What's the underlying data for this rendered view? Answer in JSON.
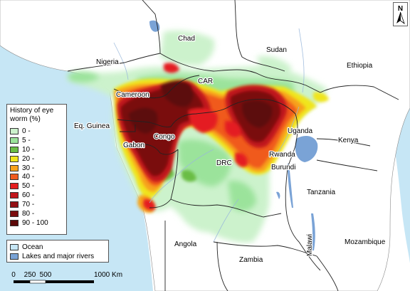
{
  "legend": {
    "title": "History of eye worm (%)",
    "classes": [
      {
        "label": "0 -",
        "color": "#ccf2cc"
      },
      {
        "label": "5 -",
        "color": "#9be39b"
      },
      {
        "label": "10 -",
        "color": "#6abd45"
      },
      {
        "label": "20 -",
        "color": "#f0e51d"
      },
      {
        "label": "30 -",
        "color": "#f7a21b"
      },
      {
        "label": "40 -",
        "color": "#f05a1e"
      },
      {
        "label": "50 -",
        "color": "#e41e20"
      },
      {
        "label": "60 -",
        "color": "#c1161b"
      },
      {
        "label": "70 -",
        "color": "#941014"
      },
      {
        "label": "80 -",
        "color": "#7a0c0e"
      },
      {
        "label": "90 - 100",
        "color": "#5c0808"
      }
    ]
  },
  "water_legend": {
    "ocean_label": "Ocean",
    "ocean_color": "#c6e6f5",
    "lakes_label": "Lakes and major rivers",
    "lakes_color": "#7aa3d6"
  },
  "scale": {
    "t0": "0",
    "t1": "250",
    "t2": "500",
    "t3": "1000 Km"
  },
  "north_label": "N",
  "countries": {
    "chad": "Chad",
    "sudan": "Sudan",
    "nigeria": "Nigeria",
    "ethiopia": "Ethiopia",
    "car": "CAR",
    "cameroon": "Cameroon",
    "eq_guinea": "Eq. Guinea",
    "congo": "Congo",
    "gabon": "Gabon",
    "uganda": "Uganda",
    "kenya": "Kenya",
    "drc": "DRC",
    "rwanda": "Rwanda",
    "burundi": "Burundi",
    "tanzania": "Tanzania",
    "angola": "Angola",
    "zambia": "Zambia",
    "malawi": "Malawi",
    "mozambique": "Mozambique"
  }
}
